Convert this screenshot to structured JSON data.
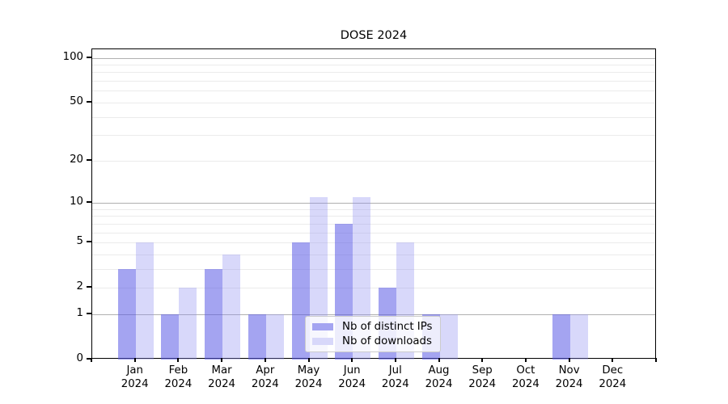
{
  "title": "DOSE 2024",
  "chart_data": {
    "type": "bar",
    "title": "DOSE 2024",
    "xlabel": "",
    "ylabel": "",
    "scale": "log1p",
    "ylim": [
      0,
      114
    ],
    "grid": "on",
    "legend_position": "lower center",
    "categories": [
      "Jan",
      "Feb",
      "Mar",
      "Apr",
      "May",
      "Jun",
      "Jul",
      "Aug",
      "Sep",
      "Oct",
      "Nov",
      "Dec"
    ],
    "x_year_line": "2024",
    "y_ticks": [
      0,
      1,
      2,
      5,
      10,
      20,
      50,
      100
    ],
    "y_gridlines_dark": [
      1,
      10,
      100
    ],
    "y_gridlines_light": [
      2,
      5,
      20,
      50,
      3,
      4,
      6,
      7,
      8,
      9,
      30,
      40,
      60,
      70,
      80,
      90
    ],
    "series": [
      {
        "id": "distinct-ips",
        "name": "Nb of distinct IPs",
        "color": "rgba(90,90,230,0.55)",
        "legend_color": "#a4a4f1",
        "values": [
          3,
          1,
          3,
          1,
          5,
          7,
          2,
          1,
          0,
          0,
          1,
          0
        ]
      },
      {
        "id": "downloads",
        "name": "Nb of downloads",
        "color": "rgba(144,144,240,0.35)",
        "legend_color": "#d8d8fa",
        "values": [
          5,
          2,
          4,
          1,
          11,
          11,
          5,
          1,
          0,
          0,
          1,
          0
        ]
      }
    ]
  },
  "colors": {
    "spine": "#000000",
    "grid_major": "#b0b0b0",
    "grid_minor": "#ebebeb",
    "legend_border": "#cccccc"
  }
}
